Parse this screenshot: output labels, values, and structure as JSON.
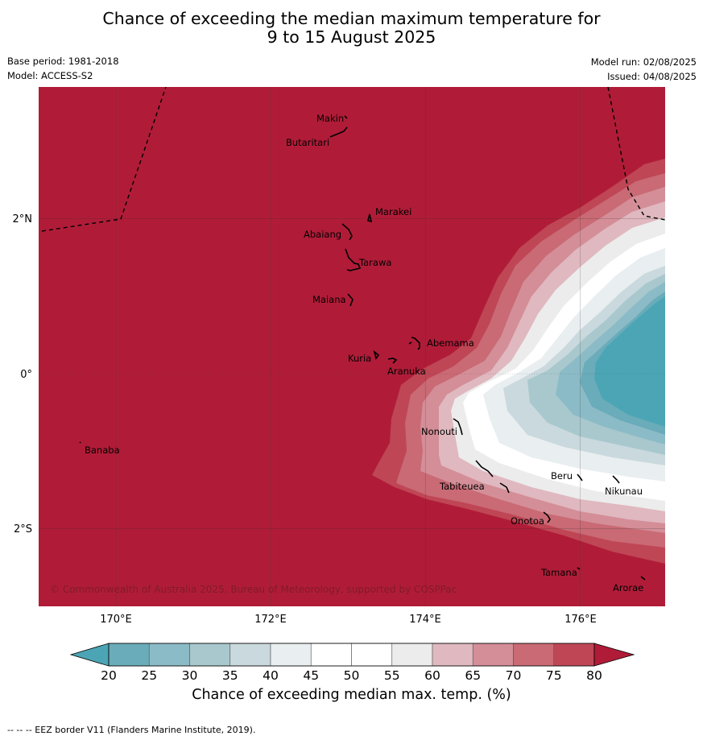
{
  "title": {
    "line1": "Chance of exceeding the median maximum temperature for",
    "line2": "9 to 15 August 2025"
  },
  "meta": {
    "base_period": "Base period: 1981-2018",
    "model": "Model: ACCESS-S2",
    "model_run": "Model run: 02/08/2025",
    "issued": "Issued: 04/08/2025"
  },
  "map": {
    "extent": {
      "lon": [
        169.0,
        177.1
      ],
      "lat": [
        -3.0,
        3.7
      ]
    },
    "lat_ticks": [
      {
        "value": 2,
        "label": "2°N"
      },
      {
        "value": 0,
        "label": "0°"
      },
      {
        "value": -2,
        "label": "2°S"
      }
    ],
    "lon_ticks": [
      {
        "value": 170,
        "label": "170°E"
      },
      {
        "value": 172,
        "label": "172°E"
      },
      {
        "value": 174,
        "label": "174°E"
      },
      {
        "value": 176,
        "label": "176°E"
      }
    ],
    "places": [
      {
        "name": "Makin",
        "lon": 172.95,
        "lat": 3.3
      },
      {
        "name": "Butaritari",
        "lon": 172.75,
        "lat": 3.05
      },
      {
        "name": "Marakei",
        "lon": 173.3,
        "lat": 2.0
      },
      {
        "name": "Abaiang",
        "lon": 172.95,
        "lat": 1.8
      },
      {
        "name": "Tarawa",
        "lon": 173.0,
        "lat": 1.4
      },
      {
        "name": "Maiana",
        "lon": 173.0,
        "lat": 0.95
      },
      {
        "name": "Abemama",
        "lon": 173.87,
        "lat": 0.4
      },
      {
        "name": "Kuria",
        "lon": 173.42,
        "lat": 0.22
      },
      {
        "name": "Aranuka",
        "lon": 173.6,
        "lat": 0.18
      },
      {
        "name": "Nonouti",
        "lon": 174.4,
        "lat": -0.66
      },
      {
        "name": "Banaba",
        "lon": 169.55,
        "lat": -0.87
      },
      {
        "name": "Tabiteuea",
        "lon": 174.8,
        "lat": -1.35
      },
      {
        "name": "Beru",
        "lon": 176.0,
        "lat": -1.33
      },
      {
        "name": "Nikunau",
        "lon": 176.45,
        "lat": -1.37
      },
      {
        "name": "Onotoa",
        "lon": 175.55,
        "lat": -1.85
      },
      {
        "name": "Tamana",
        "lon": 175.98,
        "lat": -2.5
      },
      {
        "name": "Arorae",
        "lon": 176.82,
        "lat": -2.65
      }
    ],
    "copyright": "© Commonwealth of Australia 2025, Bureau of Meteorology, supported by COSPPac"
  },
  "colorbar": {
    "ticks": [
      "20",
      "25",
      "30",
      "35",
      "40",
      "45",
      "50",
      "55",
      "60",
      "65",
      "70",
      "75",
      "80"
    ],
    "colors": [
      "#6aacb9",
      "#8bbbc6",
      "#a8c8ce",
      "#c9d9dd",
      "#e9eef0",
      "#ffffff",
      "#ffffff",
      "#ececec",
      "#e0b8bf",
      "#d48e98",
      "#c96a75",
      "#bf4655"
    ],
    "under_color": "#4ba5b5",
    "over_color": "#b01c38",
    "title": "Chance of exceeding median max. temp. (%)"
  },
  "footnote": "--  --  -- EEZ border V11 (Flanders Marine Institute, 2019)."
}
